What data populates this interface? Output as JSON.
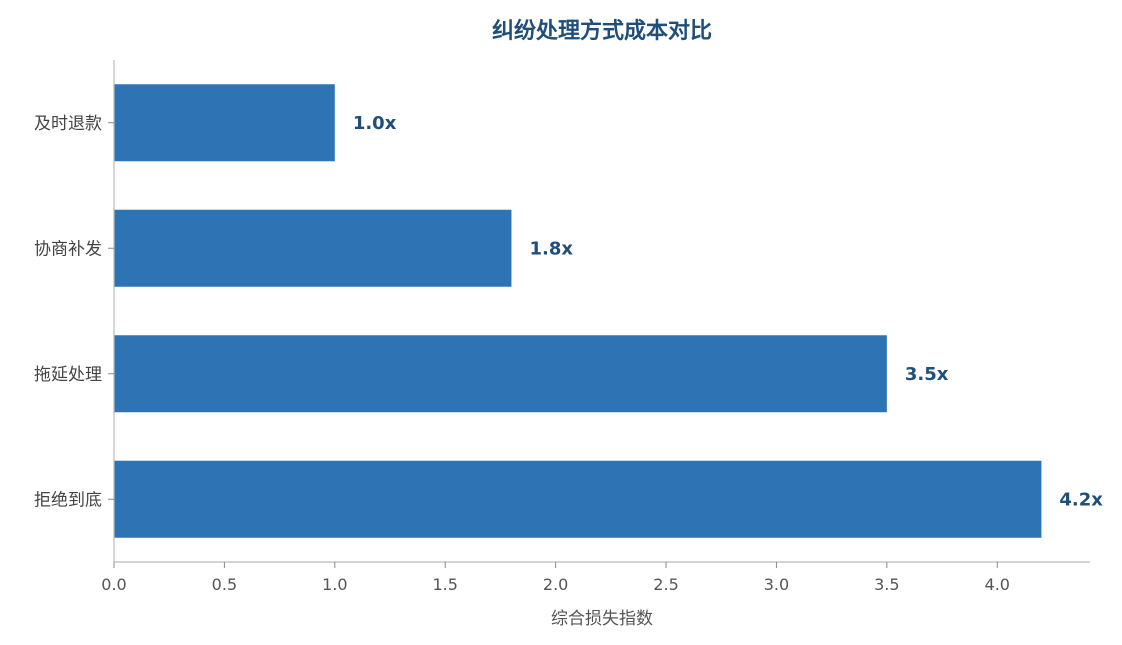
{
  "chart_data": {
    "type": "bar",
    "orientation": "horizontal",
    "title": "纠纷处理方式成本对比",
    "xlabel": "综合损失指数",
    "ylabel": "",
    "categories": [
      "及时退款",
      "协商补发",
      "拖延处理",
      "拒绝到底"
    ],
    "values": [
      1.0,
      1.8,
      3.5,
      4.2
    ],
    "value_labels": [
      "1.0x",
      "1.8x",
      "3.5x",
      "4.2x"
    ],
    "xlim": [
      0,
      4.42
    ],
    "xticks": [
      0.0,
      0.5,
      1.0,
      1.5,
      2.0,
      2.5,
      3.0,
      3.5,
      4.0
    ],
    "xtick_labels": [
      "0.0",
      "0.5",
      "1.0",
      "1.5",
      "2.0",
      "2.5",
      "3.0",
      "3.5",
      "4.0"
    ],
    "bar_color": "#2e74b5",
    "label_color": "#1f4e79",
    "grid": false,
    "legend": "none"
  }
}
